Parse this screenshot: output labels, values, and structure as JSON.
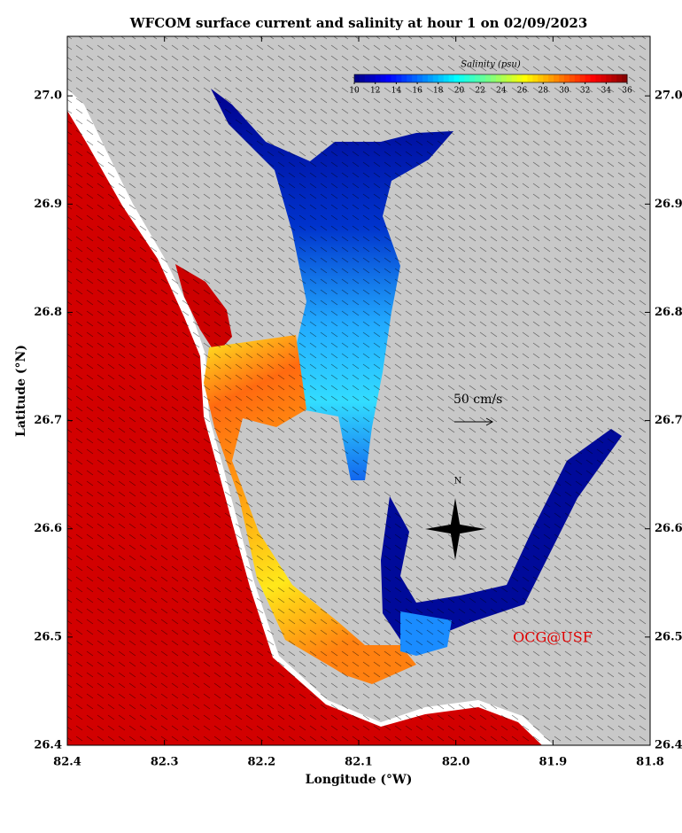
{
  "map": {
    "title": "WFCOM surface current and salinity at hour 1 on 02/09/2023",
    "xlabel": "Longitude (°W)",
    "ylabel": "Latitude (°N)",
    "xlim": [
      82.4,
      81.8
    ],
    "ylim": [
      26.4,
      27.055
    ],
    "xticks": [
      82.4,
      82.3,
      82.2,
      82.1,
      {
        "value": 82,
        "label": "82.0"
      },
      81.9,
      81.8
    ],
    "yticks": [
      26.4,
      26.5,
      26.6,
      26.7,
      26.8,
      26.9,
      {
        "value": 27,
        "label": "27.0"
      }
    ],
    "colorbar": {
      "label": "Salinity (psu)",
      "lim": [
        10,
        36
      ],
      "ticks": [
        10,
        12,
        14,
        16,
        18,
        20,
        22,
        24,
        26,
        28,
        30,
        32,
        34,
        36
      ]
    },
    "scale_arrow": "50 cm/s",
    "compass": "N",
    "credit": "OCG@USF"
  }
}
